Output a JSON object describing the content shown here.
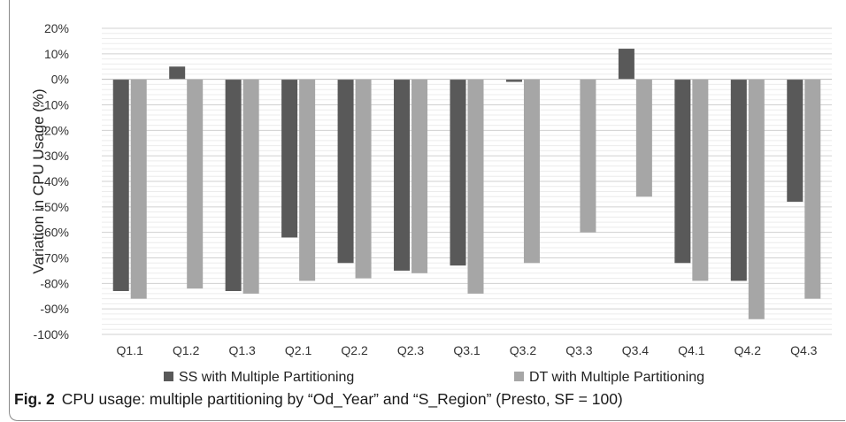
{
  "chart_data": {
    "type": "bar",
    "title": "",
    "xlabel": "",
    "ylabel": "Variation in CPU Usage (%)",
    "ylim": [
      -100,
      20
    ],
    "yticks": [
      20,
      10,
      0,
      -10,
      -20,
      -30,
      -40,
      -50,
      -60,
      -70,
      -80,
      -90,
      -100
    ],
    "ytick_labels": [
      "20%",
      "10%",
      "0%",
      "-10%",
      "-20%",
      "-30%",
      "-40%",
      "-50%",
      "-60%",
      "-70%",
      "-80%",
      "-90%",
      "-100%"
    ],
    "grid": true,
    "legend_position": "bottom",
    "categories": [
      "Q1.1",
      "Q1.2",
      "Q1.3",
      "Q2.1",
      "Q2.2",
      "Q2.3",
      "Q3.1",
      "Q3.2",
      "Q3.3",
      "Q3.4",
      "Q4.1",
      "Q4.2",
      "Q4.3"
    ],
    "series": [
      {
        "name": "SS with Multiple Partitioning",
        "color": "#595959",
        "values": [
          -83,
          5,
          -83,
          -62,
          -72,
          -75,
          -73,
          -1,
          0,
          12,
          -72,
          -79,
          -48
        ]
      },
      {
        "name": "DT with Multiple Partitioning",
        "color": "#a6a6a6",
        "values": [
          -86,
          -82,
          -84,
          -79,
          -78,
          -76,
          -84,
          -72,
          -60,
          -46,
          -79,
          -94,
          -86
        ]
      }
    ]
  },
  "caption": {
    "label": "Fig. 2",
    "text": "CPU usage: multiple partitioning by “Od_Year” and “S_Region” (Presto, SF = 100)"
  }
}
